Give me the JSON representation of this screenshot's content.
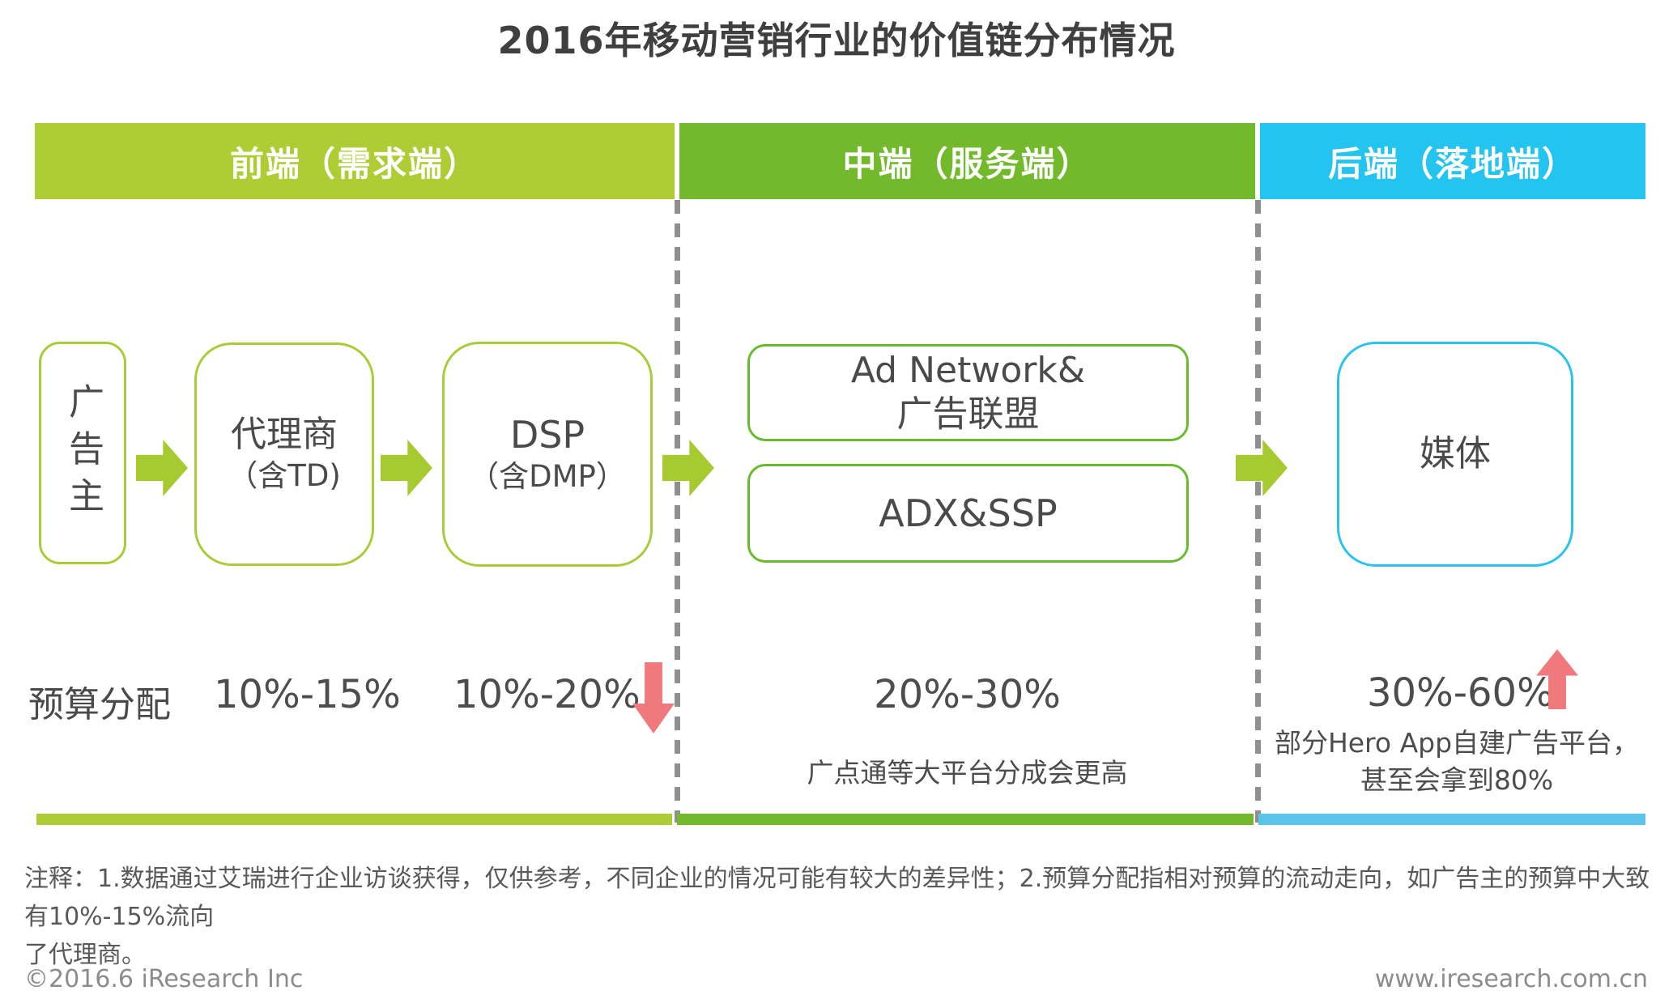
{
  "title": "2016年移动营销行业的价值链分布情况",
  "headers": {
    "front": "前端（需求端）",
    "middle": "中端（服务端）",
    "back": "后端（落地端）"
  },
  "chain": {
    "advertiser": "广告主",
    "agency": {
      "line1": "代理商",
      "line2": "（含TD)"
    },
    "dsp": {
      "line1": "DSP",
      "line2": "（含DMP）"
    },
    "ad_network": {
      "line1": "Ad Network&",
      "line2": "广告联盟"
    },
    "adx_ssp": "ADX&SSP",
    "media": "媒体"
  },
  "budget": {
    "label": "预算分配",
    "agency_share": "10%-15%",
    "dsp_share": "10%-20%",
    "middle_share": "20%-30%",
    "middle_note": "广点通等大平台分成会更高",
    "back_share": "30%-60%",
    "back_note_line1": "部分Hero App自建广告平台，",
    "back_note_line2": "甚至会拿到80%"
  },
  "notes": {
    "line1": "注释：1.数据通过艾瑞进行企业访谈获得，仅供参考，不同企业的情况可能有较大的差异性；2.预算分配指相对预算的流动走向，如广告主的预算中大致有10%-15%流向",
    "line2": "了代理商。"
  },
  "footer": {
    "left": "©2016.6 iResearch Inc",
    "right": "www.iresearch.com.cn"
  },
  "colors": {
    "front_green": "#aecd35",
    "middle_green": "#72ba2c",
    "back_blue": "#24c4f0",
    "bottom_bar_blue": "#5bc3ea",
    "flow_arrow_lime": "#a6cb31",
    "red_arrow": "#ef797d",
    "dash_gray": "#8f8f8f",
    "box_border_lime": "#a8cc37",
    "box_border_green": "#68bb2f",
    "box_border_cyan": "#2ac3ee",
    "text_dark": "#4a4a4a"
  }
}
